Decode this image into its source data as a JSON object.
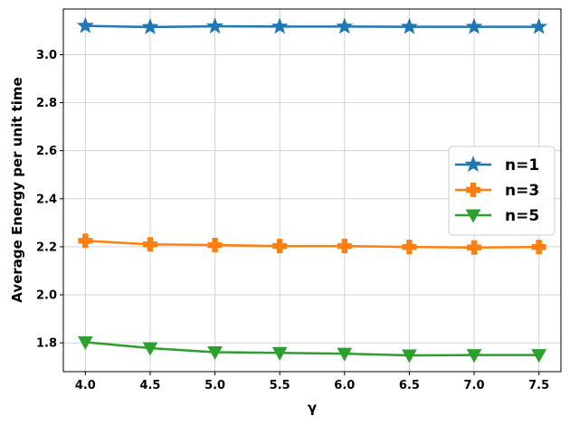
{
  "chart_data": {
    "type": "line",
    "title": "",
    "xlabel": "γ",
    "ylabel": "Average Energy per unit time",
    "x": [
      4.0,
      4.5,
      5.0,
      5.5,
      6.0,
      6.5,
      7.0,
      7.5
    ],
    "xticks": [
      4.0,
      4.5,
      5.0,
      5.5,
      6.0,
      6.5,
      7.0,
      7.5
    ],
    "xtick_labels": [
      "4.0",
      "4.5",
      "5.0",
      "5.5",
      "6.0",
      "6.5",
      "7.0",
      "7.5"
    ],
    "yticks": [
      1.8,
      2.0,
      2.2,
      2.4,
      2.6,
      2.8,
      3.0
    ],
    "ytick_labels": [
      "1.8",
      "2.0",
      "2.2",
      "2.4",
      "2.6",
      "2.8",
      "3.0"
    ],
    "xlim": [
      3.83,
      7.67
    ],
    "ylim": [
      1.68,
      3.19
    ],
    "grid": true,
    "legend_position": "center-right",
    "series": [
      {
        "name": "n=1",
        "color": "#1f77b4",
        "marker": "star",
        "values": [
          3.12,
          3.115,
          3.118,
          3.117,
          3.117,
          3.116,
          3.116,
          3.116
        ]
      },
      {
        "name": "n=3",
        "color": "#ff7f0e",
        "marker": "plus",
        "values": [
          2.225,
          2.21,
          2.207,
          2.203,
          2.203,
          2.199,
          2.197,
          2.199
        ]
      },
      {
        "name": "n=5",
        "color": "#2ca02c",
        "marker": "triangle-down",
        "values": [
          1.803,
          1.778,
          1.761,
          1.758,
          1.755,
          1.748,
          1.749,
          1.749
        ]
      }
    ]
  }
}
